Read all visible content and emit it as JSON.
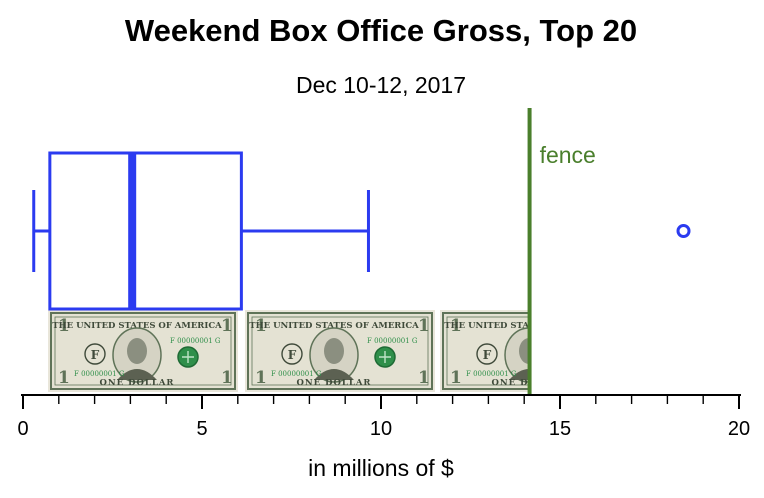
{
  "chart_data": {
    "type": "boxplot",
    "title": "Weekend Box Office Gross, Top 20",
    "subtitle": "Dec 10-12, 2017",
    "xlabel": "in millions of $",
    "xlim": [
      0,
      20
    ],
    "xticks": [
      0,
      5,
      10,
      15,
      20
    ],
    "minor_tick_step": 1,
    "box": {
      "whisker_low": 0.3,
      "q1": 0.75,
      "median": 3.05,
      "q3": 6.1,
      "whisker_high": 9.65
    },
    "outliers": [
      18.45
    ],
    "fence": {
      "value": 14.15,
      "label": "fence"
    },
    "dollar_bill": {
      "top_text": "THE UNITED STATES OF AMERICA",
      "bottom_text": "ONE DOLLAR",
      "denomination": "1",
      "serial": "F 00000001 G",
      "district_letter": "F"
    },
    "colors": {
      "box": "#2b3bf0",
      "fence": "#4a7f2c",
      "axis": "#000000",
      "bill_green": "#5f7358"
    }
  }
}
